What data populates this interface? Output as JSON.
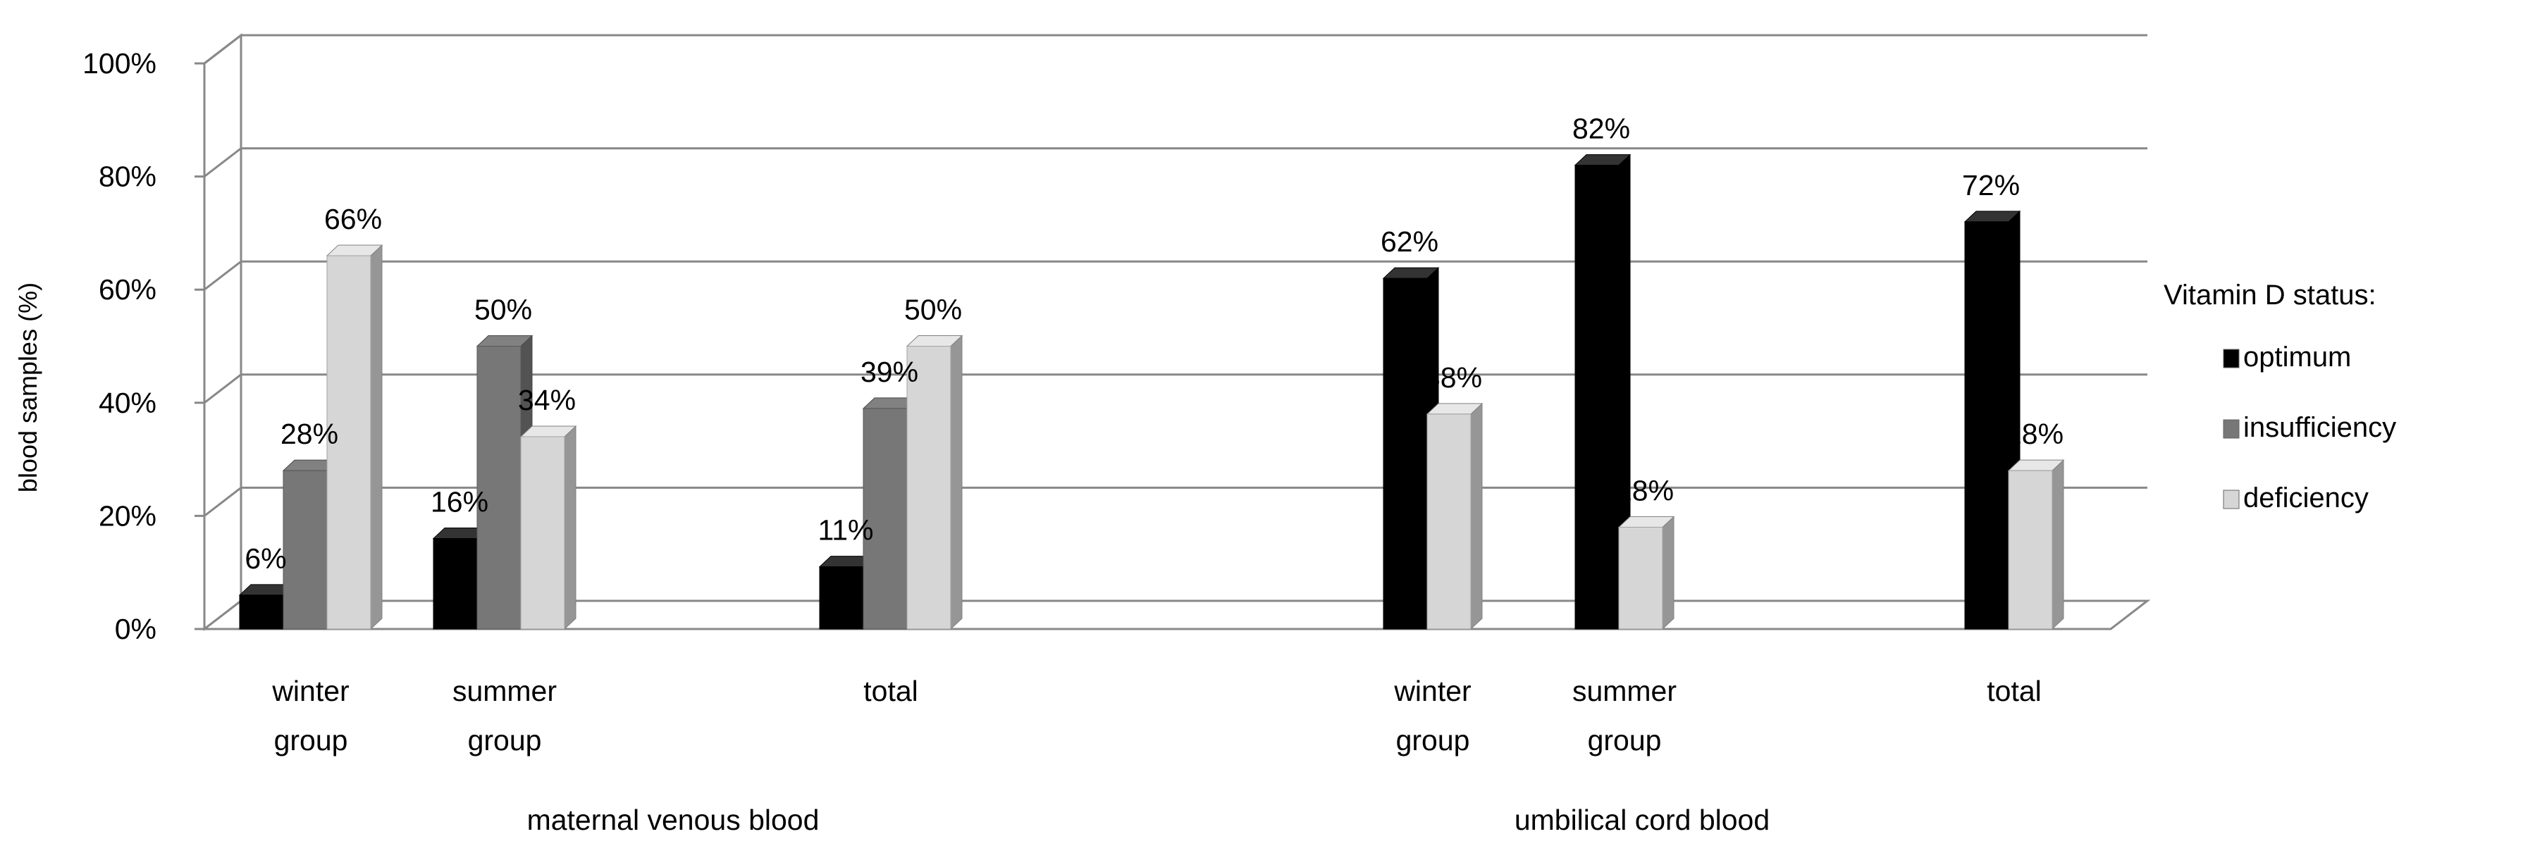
{
  "chart_data": {
    "type": "bar",
    "style": "3d-clustered-column",
    "ylabel": "blood samples (%)",
    "ylim": [
      0,
      100
    ],
    "yticks": [
      "0%",
      "20%",
      "40%",
      "60%",
      "80%",
      "100%"
    ],
    "grid": true,
    "legend": {
      "title": "Vitamin D status:",
      "placement": "right",
      "entries": [
        "optimum",
        "insufficiency",
        "deficiency"
      ]
    },
    "series": [
      {
        "name": "optimum",
        "color": "#000000"
      },
      {
        "name": "insufficiency",
        "color": "#777777"
      },
      {
        "name": "deficiency",
        "color": "#d6d6d6"
      }
    ],
    "groups": [
      {
        "label": "maternal venous blood",
        "categories": [
          {
            "label": [
              "winter",
              "group"
            ],
            "bars": [
              {
                "series": "optimum",
                "value": 6,
                "text": "6%"
              },
              {
                "series": "insufficiency",
                "value": 28,
                "text": "28%"
              },
              {
                "series": "deficiency",
                "value": 66,
                "text": "66%"
              }
            ]
          },
          {
            "label": [
              "summer",
              "group"
            ],
            "bars": [
              {
                "series": "optimum",
                "value": 16,
                "text": "16%"
              },
              {
                "series": "insufficiency",
                "value": 50,
                "text": "50%"
              },
              {
                "series": "deficiency",
                "value": 34,
                "text": "34%"
              }
            ]
          },
          {
            "label": [
              "total"
            ],
            "bars": [
              {
                "series": "optimum",
                "value": 11,
                "text": "11%"
              },
              {
                "series": "insufficiency",
                "value": 39,
                "text": "39%"
              },
              {
                "series": "deficiency",
                "value": 50,
                "text": "50%"
              }
            ]
          }
        ]
      },
      {
        "label": "umbilical cord blood",
        "categories": [
          {
            "label": [
              "winter",
              "group"
            ],
            "bars": [
              {
                "series": "optimum",
                "value": 62,
                "text": "62%"
              },
              {
                "series": "deficiency",
                "value": 38,
                "text": "38%"
              }
            ]
          },
          {
            "label": [
              "summer",
              "group"
            ],
            "bars": [
              {
                "series": "optimum",
                "value": 82,
                "text": "82%"
              },
              {
                "series": "deficiency",
                "value": 18,
                "text": "18%"
              }
            ]
          },
          {
            "label": [
              "total"
            ],
            "bars": [
              {
                "series": "optimum",
                "value": 72,
                "text": "72%"
              },
              {
                "series": "deficiency",
                "value": 28,
                "text": "28%"
              }
            ]
          }
        ]
      }
    ]
  }
}
